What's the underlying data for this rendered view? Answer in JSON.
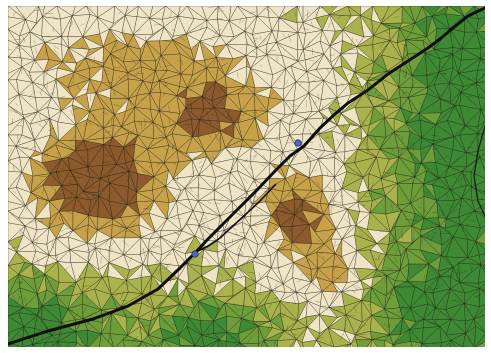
{
  "map": {
    "type": "triangulated-terrain",
    "elevation_colors": {
      "lowland": "#3e8a34",
      "low": "#6e9e3a",
      "mid": "#a9b24c",
      "plateau": "#efe4c6",
      "upper": "#c7a24a",
      "peak": "#8c5a2c"
    },
    "mesh_color": "#1b1b0f",
    "feature_color": "#0e0e0e",
    "marker_color": "#4a6bc0"
  }
}
